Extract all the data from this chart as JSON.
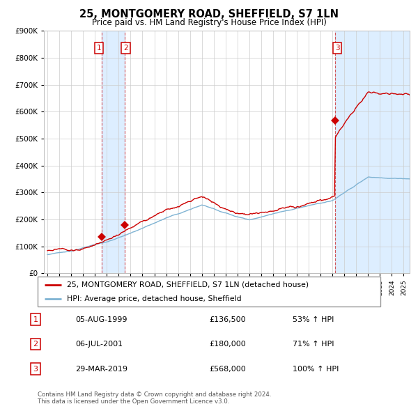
{
  "title": "25, MONTGOMERY ROAD, SHEFFIELD, S7 1LN",
  "subtitle": "Price paid vs. HM Land Registry's House Price Index (HPI)",
  "legend_label_red": "25, MONTGOMERY ROAD, SHEFFIELD, S7 1LN (detached house)",
  "legend_label_blue": "HPI: Average price, detached house, Sheffield",
  "footer": "Contains HM Land Registry data © Crown copyright and database right 2024.\nThis data is licensed under the Open Government Licence v3.0.",
  "sale_prices": [
    136500,
    180000,
    568000
  ],
  "sale_labels": [
    "1",
    "2",
    "3"
  ],
  "sale_year_floats": [
    1999.583,
    2001.5,
    2019.25
  ],
  "table_rows": [
    [
      "1",
      "05-AUG-1999",
      "£136,500",
      "53% ↑ HPI"
    ],
    [
      "2",
      "06-JUL-2001",
      "£180,000",
      "71% ↑ HPI"
    ],
    [
      "3",
      "29-MAR-2019",
      "£568,000",
      "100% ↑ HPI"
    ]
  ],
  "red_color": "#cc0000",
  "blue_color": "#7fb3d3",
  "highlight_fill": "#ddeeff",
  "grid_color": "#cccccc",
  "background_color": "#ffffff",
  "ylim": [
    0,
    900000
  ],
  "yticks": [
    0,
    100000,
    200000,
    300000,
    400000,
    500000,
    600000,
    700000,
    800000,
    900000
  ],
  "ytick_labels": [
    "£0",
    "£100K",
    "£200K",
    "£300K",
    "£400K",
    "£500K",
    "£600K",
    "£700K",
    "£800K",
    "£900K"
  ],
  "xlim_start": 1994.7,
  "xlim_end": 2025.5
}
